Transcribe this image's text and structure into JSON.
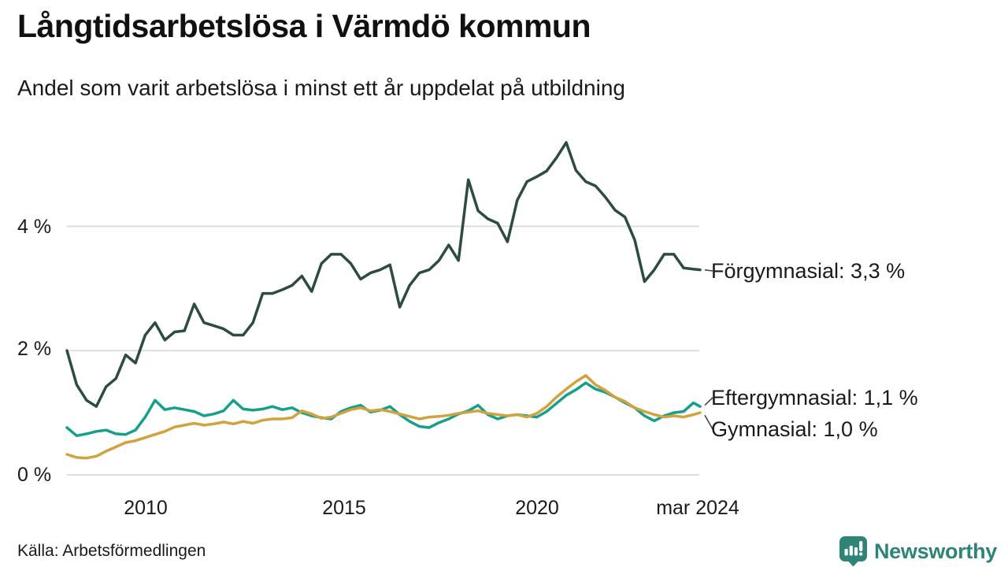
{
  "title": "Långtidsarbetslösa i Värmdö kommun",
  "subtitle": "Andel som varit arbetslösa i minst ett år uppdelat på utbildning",
  "source": "Källa: Arbetsförmedlingen",
  "brand": {
    "name": "Newsworthy",
    "color": "#2E8577"
  },
  "colors": {
    "background": "#FFFFFF",
    "gridline": "#DDDDDD",
    "text": "#1A1A1A",
    "connector": "#444444",
    "forgymnasial": "#2C4C43",
    "eftergymnasial": "#16A08C",
    "gymnasial": "#D2A23F"
  },
  "chart_data": {
    "type": "line",
    "title": "Långtidsarbetslösa i Värmdö kommun",
    "subtitle": "Andel som varit arbetslösa i minst ett år uppdelat på utbildning",
    "x_unit": "decimal_year",
    "xlim": [
      2008,
      2024.25
    ],
    "ylim": [
      0,
      5.7
    ],
    "grid": "horizontal",
    "legend_position": "right-end-labels",
    "y_ticks": [
      {
        "v": 0,
        "label": "0 %"
      },
      {
        "v": 2,
        "label": "2 %"
      },
      {
        "v": 4,
        "label": "4 %"
      }
    ],
    "x_ticks": [
      {
        "x": 2010,
        "label": "2010"
      },
      {
        "x": 2015,
        "label": "2015"
      },
      {
        "x": 2020,
        "label": "2020"
      },
      {
        "x": 2024.17,
        "label": "mar 2024"
      }
    ],
    "x": [
      2008.0,
      2008.25,
      2008.5,
      2008.75,
      2009.0,
      2009.25,
      2009.5,
      2009.75,
      2010.0,
      2010.25,
      2010.5,
      2010.75,
      2011.0,
      2011.25,
      2011.5,
      2011.75,
      2012.0,
      2012.25,
      2012.5,
      2012.75,
      2013.0,
      2013.25,
      2013.5,
      2013.75,
      2014.0,
      2014.25,
      2014.5,
      2014.75,
      2015.0,
      2015.25,
      2015.5,
      2015.75,
      2016.0,
      2016.25,
      2016.5,
      2016.75,
      2017.0,
      2017.25,
      2017.5,
      2017.75,
      2018.0,
      2018.25,
      2018.5,
      2018.75,
      2019.0,
      2019.25,
      2019.5,
      2019.75,
      2020.0,
      2020.25,
      2020.5,
      2020.75,
      2021.0,
      2021.25,
      2021.5,
      2021.75,
      2022.0,
      2022.25,
      2022.5,
      2022.75,
      2023.0,
      2023.25,
      2023.5,
      2023.75,
      2024.0,
      2024.17
    ],
    "series": [
      {
        "name": "Förgymnasial",
        "end_label": "Förgymnasial: 3,3 %",
        "end_value_label": "3,3 %",
        "color": "#2C4C43",
        "values": [
          2.0,
          1.45,
          1.2,
          1.1,
          1.42,
          1.55,
          1.93,
          1.8,
          2.25,
          2.45,
          2.17,
          2.3,
          2.32,
          2.75,
          2.45,
          2.4,
          2.35,
          2.25,
          2.25,
          2.45,
          2.92,
          2.92,
          2.98,
          3.05,
          3.2,
          2.95,
          3.4,
          3.55,
          3.55,
          3.4,
          3.15,
          3.25,
          3.3,
          3.38,
          2.7,
          3.05,
          3.25,
          3.3,
          3.45,
          3.7,
          3.45,
          4.75,
          4.25,
          4.12,
          4.05,
          3.75,
          4.42,
          4.72,
          4.8,
          4.89,
          5.1,
          5.35,
          4.9,
          4.72,
          4.65,
          4.47,
          4.26,
          4.15,
          3.78,
          3.11,
          3.3,
          3.55,
          3.55,
          3.33,
          3.31,
          3.3
        ]
      },
      {
        "name": "Eftergymnasial",
        "end_label": "Eftergymnasial: 1,1 %",
        "end_value_label": "1,1 %",
        "color": "#16A08C",
        "values": [
          0.76,
          0.63,
          0.66,
          0.7,
          0.72,
          0.66,
          0.65,
          0.72,
          0.93,
          1.2,
          1.05,
          1.08,
          1.05,
          1.02,
          0.95,
          0.98,
          1.03,
          1.2,
          1.06,
          1.04,
          1.06,
          1.1,
          1.05,
          1.08,
          1.0,
          0.95,
          0.92,
          0.9,
          1.02,
          1.08,
          1.12,
          1.01,
          1.04,
          1.1,
          0.97,
          0.86,
          0.78,
          0.76,
          0.84,
          0.9,
          0.98,
          1.03,
          1.12,
          0.97,
          0.9,
          0.95,
          0.97,
          0.95,
          0.93,
          1.02,
          1.15,
          1.28,
          1.37,
          1.48,
          1.38,
          1.33,
          1.25,
          1.16,
          1.08,
          0.95,
          0.87,
          0.95,
          1.0,
          1.02,
          1.16,
          1.1
        ]
      },
      {
        "name": "Gymnasial",
        "end_label": "Gymnasial: 1,0 %",
        "end_value_label": "1,0 %",
        "color": "#D2A23F",
        "values": [
          0.33,
          0.28,
          0.27,
          0.3,
          0.38,
          0.45,
          0.52,
          0.55,
          0.6,
          0.65,
          0.7,
          0.77,
          0.8,
          0.83,
          0.8,
          0.82,
          0.85,
          0.82,
          0.86,
          0.83,
          0.88,
          0.9,
          0.9,
          0.92,
          1.03,
          0.98,
          0.91,
          0.93,
          0.99,
          1.05,
          1.08,
          1.03,
          1.05,
          1.02,
          0.98,
          0.94,
          0.9,
          0.93,
          0.94,
          0.96,
          0.99,
          1.01,
          1.03,
          0.99,
          0.97,
          0.95,
          0.97,
          0.93,
          0.99,
          1.1,
          1.25,
          1.38,
          1.5,
          1.6,
          1.45,
          1.36,
          1.25,
          1.18,
          1.08,
          1.02,
          0.97,
          0.93,
          0.95,
          0.93,
          0.97,
          1.0
        ]
      }
    ]
  }
}
